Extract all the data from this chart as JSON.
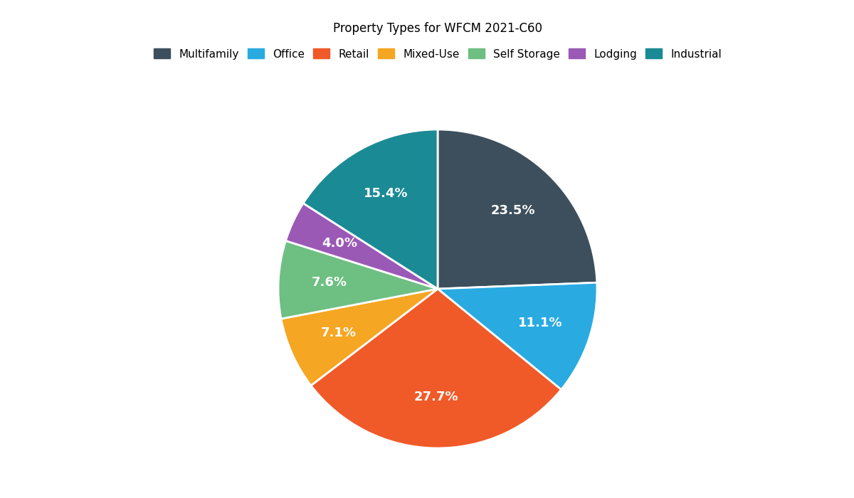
{
  "title": "Property Types for WFCM 2021-C60",
  "labels": [
    "Multifamily",
    "Office",
    "Retail",
    "Mixed-Use",
    "Self Storage",
    "Lodging",
    "Industrial"
  ],
  "values": [
    23.5,
    11.1,
    27.7,
    7.1,
    7.6,
    4.0,
    15.4
  ],
  "pct_labels": [
    "23.5%",
    "11.1%",
    "27.7%",
    "7.1%",
    "7.6%",
    "4.0%",
    "15.4%"
  ],
  "colors": [
    "#3d4f5c",
    "#29abe2",
    "#f05a28",
    "#f5a623",
    "#6dbf82",
    "#9b59b6",
    "#1a8a94"
  ],
  "startangle": 90,
  "figsize": [
    12,
    7
  ],
  "dpi": 100,
  "title_fontsize": 12,
  "pct_fontsize": 13,
  "legend_fontsize": 11,
  "pctdistance": 0.68
}
